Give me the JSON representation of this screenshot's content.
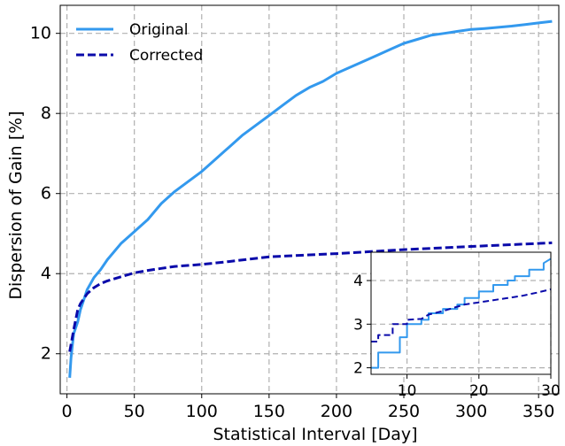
{
  "chart_data": [
    {
      "type": "line",
      "xlabel": "Statistical Interval [Day]",
      "ylabel": "Dispersion of Gain [%]",
      "xlim": [
        -5,
        365
      ],
      "ylim": [
        1.0,
        10.7
      ],
      "xticks": [
        0,
        50,
        100,
        150,
        200,
        250,
        300,
        350
      ],
      "yticks": [
        2,
        4,
        6,
        8,
        10
      ],
      "grid": true,
      "legend_position": "top-left",
      "series": [
        {
          "name": "Original",
          "color": "#3399ee",
          "style": "solid",
          "x": [
            2,
            3,
            5,
            8,
            10,
            12,
            15,
            20,
            25,
            30,
            40,
            50,
            60,
            70,
            80,
            90,
            100,
            110,
            120,
            130,
            140,
            150,
            160,
            170,
            180,
            190,
            200,
            210,
            220,
            230,
            240,
            250,
            260,
            270,
            280,
            290,
            300,
            310,
            320,
            330,
            340,
            350,
            360
          ],
          "y": [
            1.4,
            1.9,
            2.5,
            2.8,
            3.1,
            3.3,
            3.6,
            3.9,
            4.1,
            4.35,
            4.75,
            5.05,
            5.35,
            5.75,
            6.05,
            6.3,
            6.55,
            6.85,
            7.15,
            7.45,
            7.7,
            7.95,
            8.2,
            8.45,
            8.65,
            8.8,
            9.0,
            9.15,
            9.3,
            9.45,
            9.6,
            9.75,
            9.85,
            9.95,
            10.0,
            10.05,
            10.1,
            10.12,
            10.15,
            10.18,
            10.22,
            10.26,
            10.3
          ]
        },
        {
          "name": "Corrected",
          "color": "#0a0aaa",
          "style": "dashed",
          "x": [
            2,
            5,
            8,
            10,
            12,
            15,
            20,
            25,
            30,
            40,
            50,
            60,
            70,
            80,
            100,
            120,
            150,
            200,
            250,
            300,
            360
          ],
          "y": [
            2.05,
            2.6,
            3.1,
            3.25,
            3.35,
            3.5,
            3.65,
            3.75,
            3.82,
            3.92,
            4.02,
            4.08,
            4.13,
            4.18,
            4.23,
            4.3,
            4.42,
            4.5,
            4.6,
            4.68,
            4.77
          ]
        }
      ]
    },
    {
      "type": "line",
      "inset": true,
      "xlim": [
        5,
        30
      ],
      "ylim": [
        1.85,
        4.65
      ],
      "xticks": [
        10,
        20,
        30
      ],
      "yticks": [
        2,
        3,
        4
      ],
      "grid": true,
      "series": [
        {
          "name": "Original",
          "color": "#3399ee",
          "style": "solid",
          "x": [
            5,
            6,
            6,
            9,
            9,
            10,
            10,
            12,
            12,
            13,
            13,
            15,
            15,
            17,
            17,
            18,
            18,
            20,
            20,
            22,
            22,
            24,
            24,
            25,
            25,
            27,
            27,
            29,
            29,
            30
          ],
          "y": [
            2.0,
            2.0,
            2.35,
            2.35,
            2.7,
            2.7,
            3.0,
            3.0,
            3.1,
            3.1,
            3.25,
            3.25,
            3.35,
            3.35,
            3.45,
            3.45,
            3.6,
            3.6,
            3.75,
            3.75,
            3.9,
            3.9,
            4.0,
            4.0,
            4.1,
            4.1,
            4.25,
            4.25,
            4.4,
            4.5
          ]
        },
        {
          "name": "Corrected",
          "color": "#0a0aaa",
          "style": "dashed",
          "x": [
            5,
            6,
            6,
            8,
            8,
            10,
            10,
            12,
            13,
            15,
            17,
            18,
            20,
            22,
            24,
            26,
            28,
            30
          ],
          "y": [
            2.6,
            2.6,
            2.75,
            2.75,
            3.0,
            3.0,
            3.1,
            3.12,
            3.22,
            3.3,
            3.4,
            3.45,
            3.5,
            3.55,
            3.6,
            3.65,
            3.72,
            3.8
          ]
        }
      ]
    }
  ]
}
